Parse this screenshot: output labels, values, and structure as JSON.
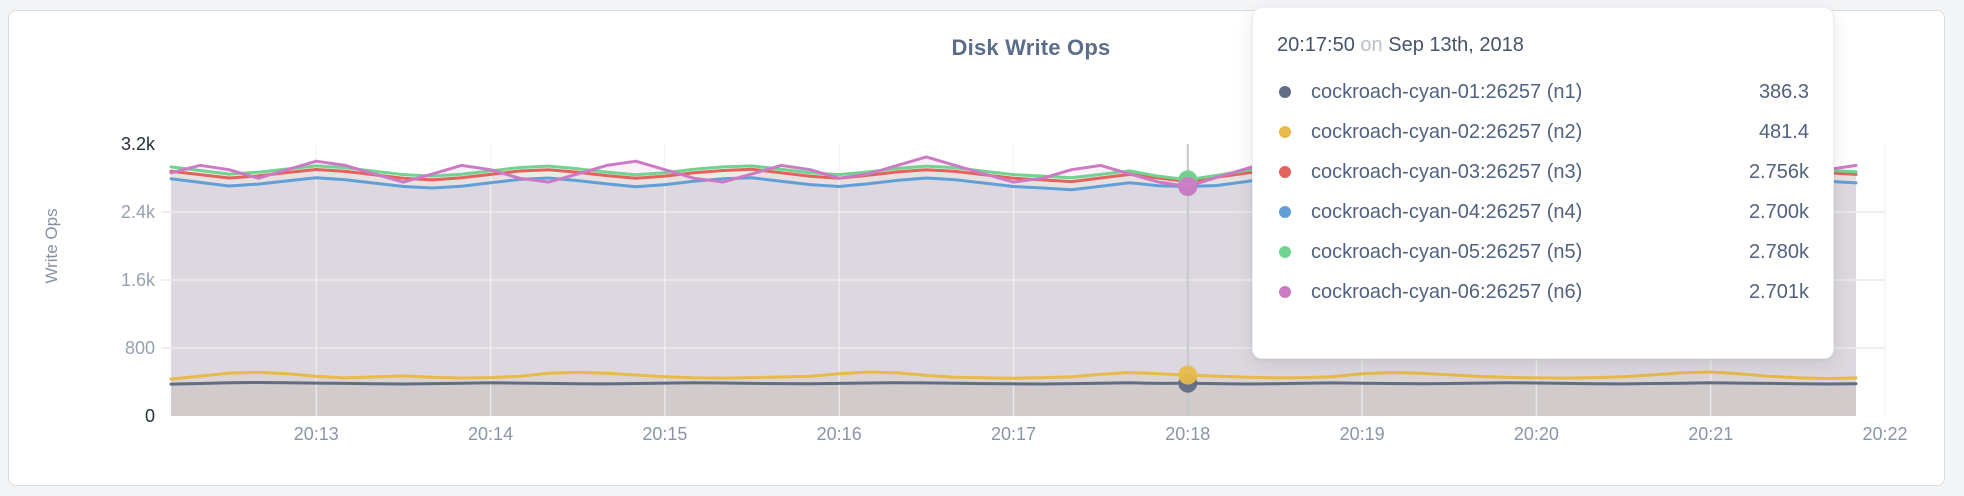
{
  "tooltip": {
    "time": "20:17:50",
    "connector": "on",
    "date": "Sep 13th, 2018"
  },
  "chart_data": {
    "type": "area",
    "title": "Disk Write Ops",
    "ylabel": "Write Ops",
    "ylim": [
      0,
      3200
    ],
    "grid": true,
    "legend_position": "tooltip-only",
    "y_ticks": [
      {
        "label": "3.2k",
        "value": 3200,
        "strong": true
      },
      {
        "label": "2.4k",
        "value": 2400,
        "strong": false
      },
      {
        "label": "1.6k",
        "value": 1600,
        "strong": false
      },
      {
        "label": "800",
        "value": 800,
        "strong": false
      },
      {
        "label": "0",
        "value": 0,
        "strong": true
      }
    ],
    "x_start_time": "20:12:10",
    "x_interval_seconds": 10,
    "x_domain_s": [
      730,
      1310
    ],
    "x_ticks": [
      {
        "label": "20:13",
        "t": 780
      },
      {
        "label": "20:14",
        "t": 840
      },
      {
        "label": "20:15",
        "t": 900
      },
      {
        "label": "20:16",
        "t": 960
      },
      {
        "label": "20:17",
        "t": 1020
      },
      {
        "label": "20:18",
        "t": 1080
      },
      {
        "label": "20:19",
        "t": 1140
      },
      {
        "label": "20:20",
        "t": 1200
      },
      {
        "label": "20:21",
        "t": 1260
      },
      {
        "label": "20:22",
        "t": 1320
      }
    ],
    "hover_index": 35,
    "hover_time": "20:17:50",
    "series": [
      {
        "name": "cockroach-cyan-01:26257",
        "node": "n1",
        "label": "cockroach-cyan-01:26257 (n1)",
        "color": "#606d85",
        "hover_value_display": "386.3",
        "values": [
          375,
          382,
          390,
          394,
          391,
          387,
          384,
          380,
          377,
          381,
          386,
          390,
          387,
          383,
          380,
          378,
          382,
          387,
          391,
          388,
          384,
          381,
          379,
          383,
          388,
          392,
          389,
          385,
          381,
          379,
          377,
          381,
          386,
          390,
          384,
          386.3,
          381,
          377,
          380,
          385,
          389,
          386,
          382,
          379,
          382,
          387,
          391,
          388,
          384,
          380,
          378,
          382,
          386,
          390,
          387,
          383,
          380,
          377,
          380
        ]
      },
      {
        "name": "cockroach-cyan-02:26257",
        "node": "n2",
        "label": "cockroach-cyan-02:26257 (n2)",
        "color": "#e7ba49",
        "hover_value_display": "481.4",
        "values": [
          435,
          470,
          505,
          515,
          498,
          468,
          448,
          460,
          472,
          455,
          447,
          452,
          468,
          502,
          515,
          504,
          482,
          462,
          450,
          446,
          452,
          459,
          468,
          498,
          518,
          508,
          478,
          456,
          449,
          445,
          452,
          462,
          492,
          512,
          498,
          481.4,
          470,
          458,
          448,
          452,
          464,
          498,
          512,
          502,
          486,
          466,
          454,
          448,
          446,
          452,
          462,
          484,
          510,
          518,
          496,
          468,
          450,
          441,
          448
        ]
      },
      {
        "name": "cockroach-cyan-03:26257",
        "node": "n3",
        "label": "cockroach-cyan-03:26257 (n3)",
        "color": "#e2625c",
        "hover_value_display": "2.756k",
        "values": [
          2880,
          2840,
          2800,
          2825,
          2865,
          2900,
          2878,
          2838,
          2798,
          2778,
          2802,
          2842,
          2882,
          2898,
          2868,
          2828,
          2798,
          2822,
          2862,
          2888,
          2902,
          2862,
          2820,
          2798,
          2832,
          2872,
          2898,
          2878,
          2838,
          2798,
          2778,
          2758,
          2800,
          2842,
          2800,
          2756,
          2810,
          2858,
          2908,
          2922,
          2878,
          2830,
          2790,
          2812,
          2852,
          2892,
          2902,
          2860,
          2820,
          2798,
          2832,
          2872,
          2898,
          2868,
          2828,
          2798,
          2822,
          2862,
          2842
        ]
      },
      {
        "name": "cockroach-cyan-04:26257",
        "node": "n4",
        "label": "cockroach-cyan-04:26257 (n4)",
        "color": "#619fd6",
        "hover_value_display": "2.700k",
        "values": [
          2790,
          2748,
          2706,
          2728,
          2766,
          2802,
          2780,
          2740,
          2700,
          2682,
          2704,
          2744,
          2784,
          2800,
          2770,
          2730,
          2698,
          2722,
          2762,
          2790,
          2802,
          2762,
          2722,
          2700,
          2732,
          2772,
          2800,
          2780,
          2740,
          2700,
          2682,
          2662,
          2702,
          2744,
          2710,
          2700,
          2712,
          2758,
          2808,
          2822,
          2778,
          2730,
          2692,
          2712,
          2752,
          2792,
          2802,
          2760,
          2722,
          2700,
          2732,
          2772,
          2798,
          2768,
          2728,
          2698,
          2722,
          2762,
          2742
        ]
      },
      {
        "name": "cockroach-cyan-05:26257",
        "node": "n5",
        "label": "cockroach-cyan-05:26257 (n5)",
        "color": "#70d390",
        "hover_value_display": "2.780k",
        "values": [
          2930,
          2888,
          2846,
          2868,
          2906,
          2942,
          2920,
          2880,
          2840,
          2822,
          2844,
          2884,
          2924,
          2940,
          2910,
          2870,
          2838,
          2862,
          2902,
          2930,
          2942,
          2902,
          2862,
          2840,
          2872,
          2912,
          2940,
          2920,
          2880,
          2840,
          2822,
          2802,
          2842,
          2884,
          2820,
          2780,
          2832,
          2888,
          2938,
          2952,
          2908,
          2860,
          2822,
          2842,
          2882,
          2922,
          2932,
          2890,
          2852,
          2830,
          2862,
          2902,
          2928,
          2898,
          2858,
          2828,
          2852,
          2892,
          2872
        ]
      },
      {
        "name": "cockroach-cyan-06:26257",
        "node": "n6",
        "label": "cockroach-cyan-06:26257 (n6)",
        "color": "#cd7ac5",
        "hover_value_display": "2.701k",
        "values": [
          2860,
          2950,
          2898,
          2798,
          2898,
          2998,
          2948,
          2848,
          2752,
          2848,
          2948,
          2898,
          2798,
          2752,
          2848,
          2948,
          2998,
          2898,
          2798,
          2752,
          2848,
          2948,
          2898,
          2798,
          2848,
          2948,
          3048,
          2948,
          2848,
          2752,
          2798,
          2898,
          2948,
          2848,
          2752,
          2701,
          2808,
          2908,
          3008,
          3058,
          2948,
          2848,
          2752,
          2798,
          2898,
          2948,
          2898,
          2798,
          2752,
          2848,
          2948,
          2998,
          2898,
          2798,
          2752,
          2848,
          2948,
          2898,
          2948
        ]
      }
    ]
  }
}
